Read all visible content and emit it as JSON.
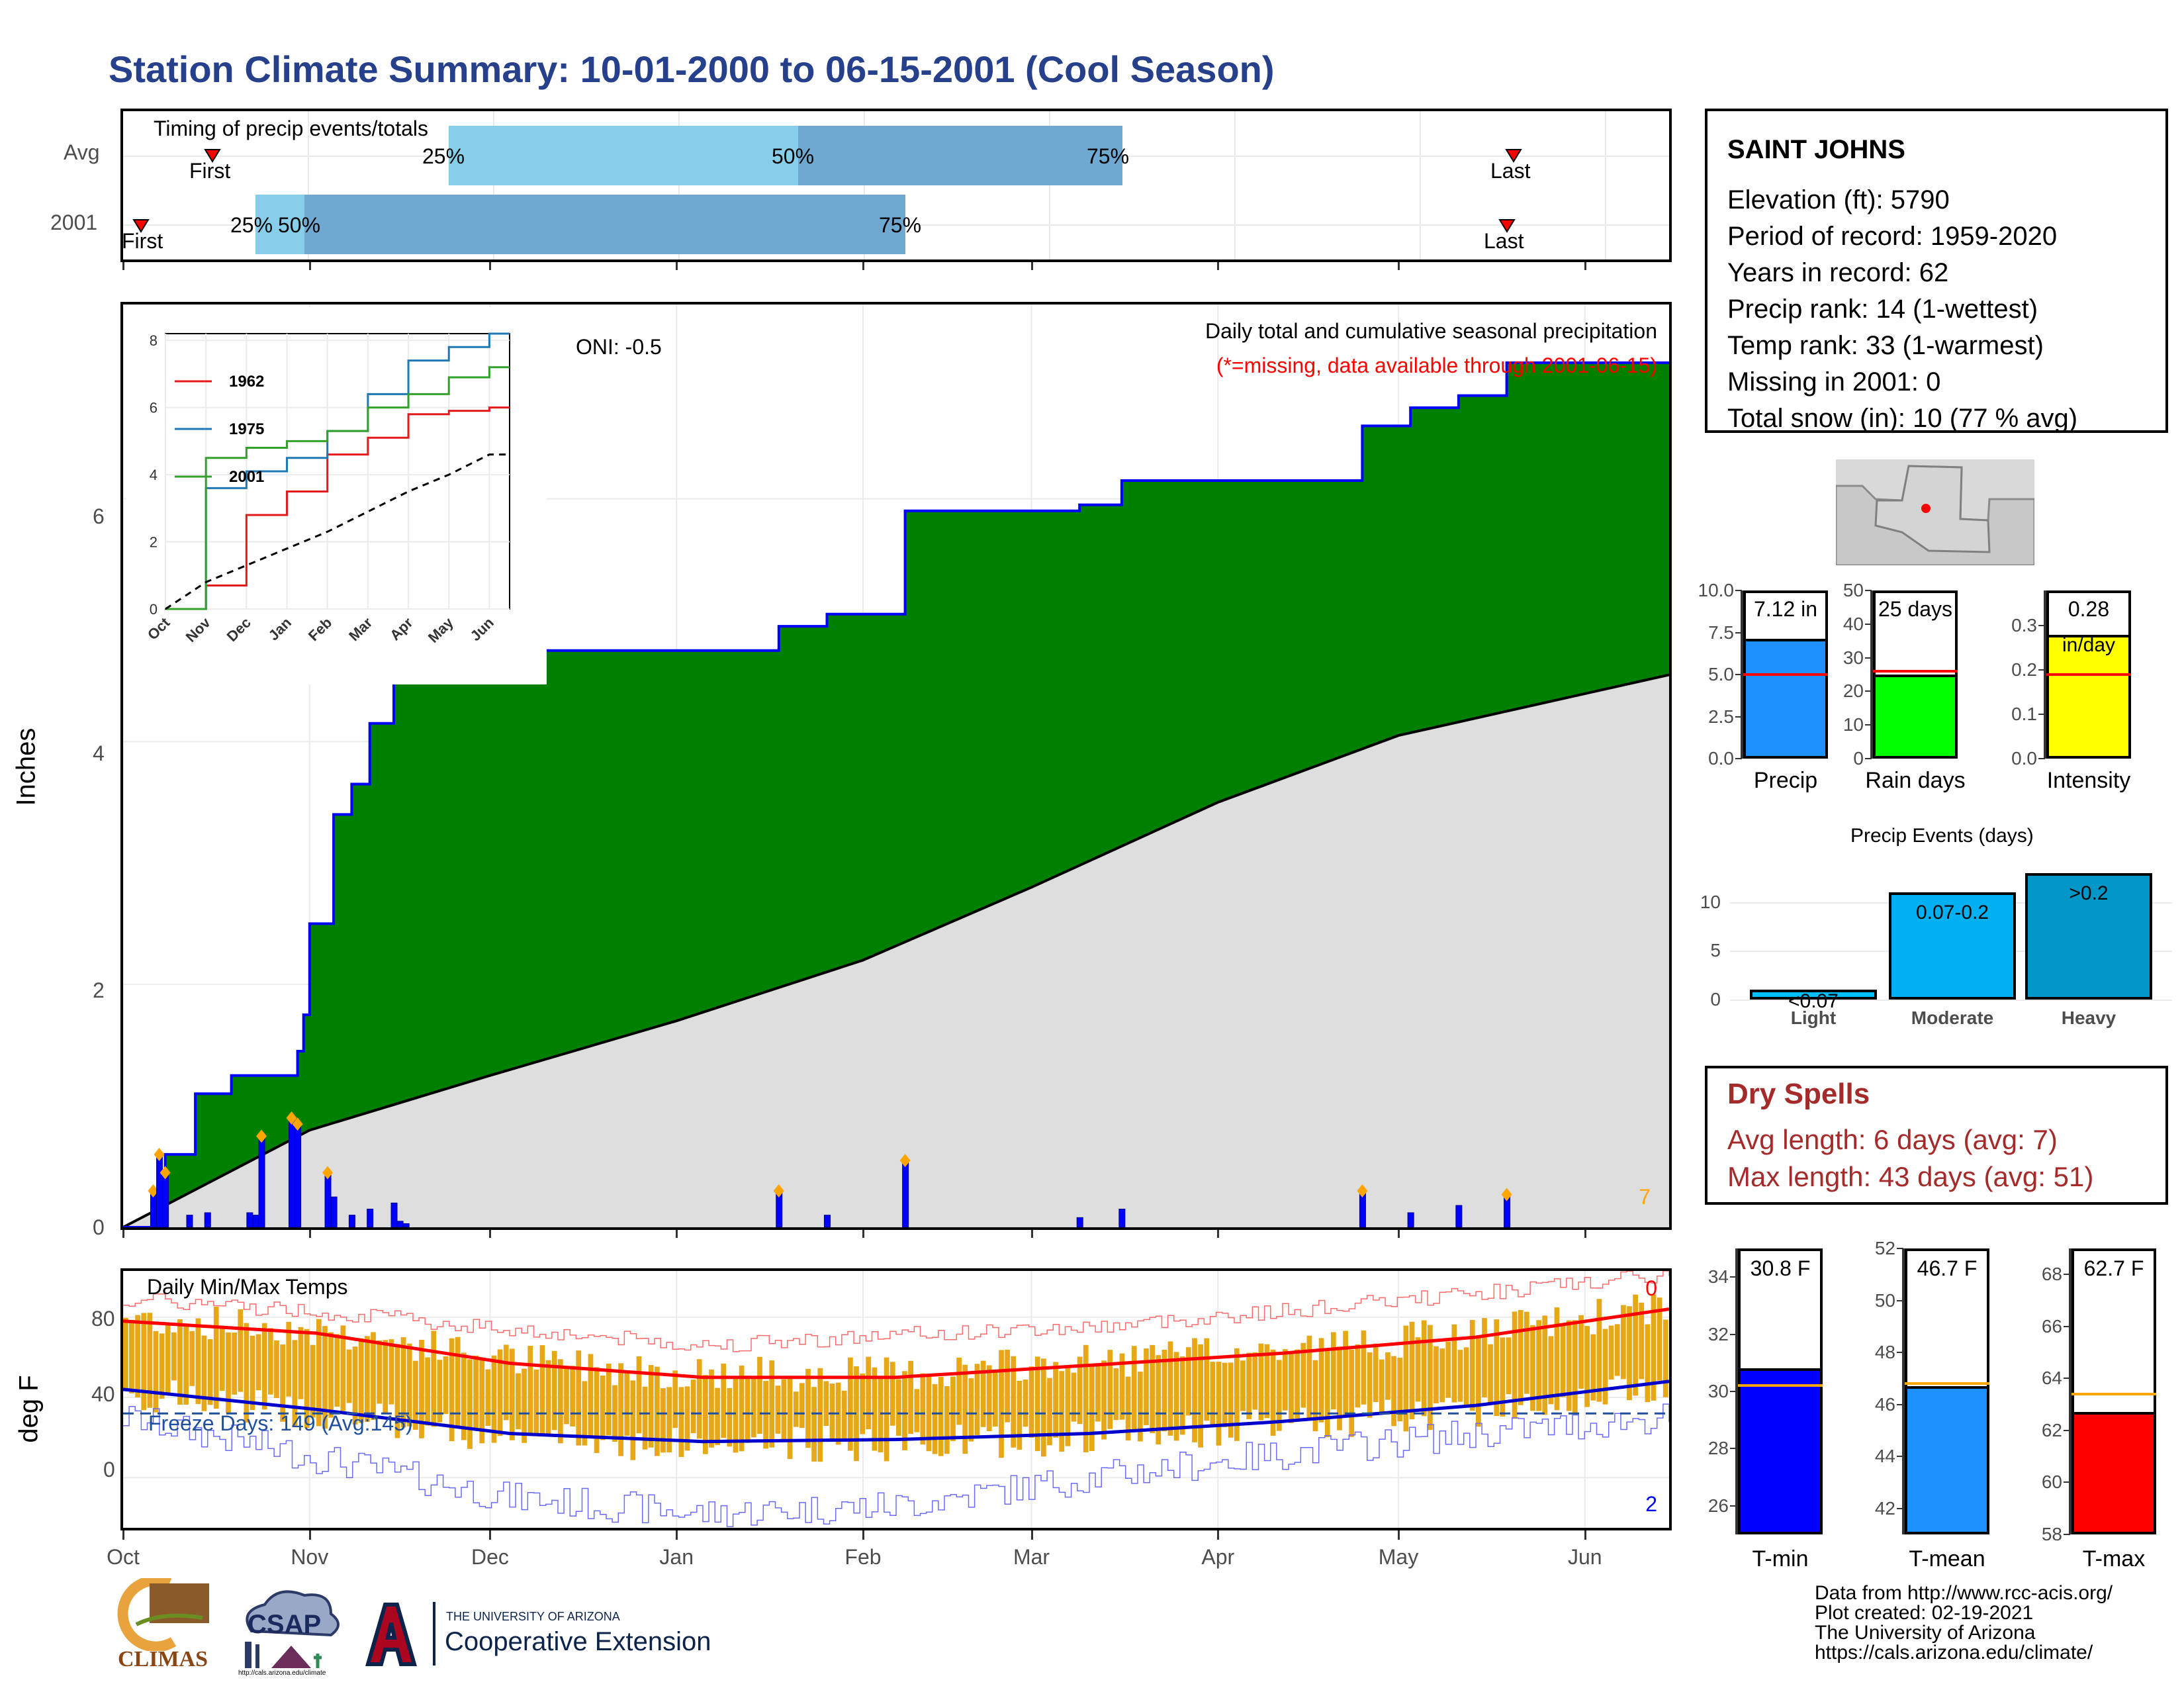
{
  "header": {
    "title": "Station Climate Summary: 10-01-2000 to 06-15-2001 (Cool Season)"
  },
  "timing": {
    "label": "Timing of precip events/totals",
    "rows": [
      "Avg",
      "2001"
    ],
    "first_label": "First",
    "last_label": "Last",
    "p25": "25%",
    "p50": "50%",
    "p75": "75%"
  },
  "main": {
    "ylabel": "Inches",
    "oni": "ONI: -0.5",
    "desc1": "Daily total and cumulative seasonal precipitation",
    "desc2": "(*=missing, data available through 2001-06-15)",
    "count_label": "7",
    "yticks": [
      "0",
      "2",
      "4",
      "6"
    ]
  },
  "inset": {
    "yticks": [
      "0",
      "2",
      "4",
      "6",
      "8"
    ],
    "months": [
      "Oct",
      "Nov",
      "Dec",
      "Jan",
      "Feb",
      "Mar",
      "Apr",
      "May",
      "Jun"
    ],
    "legend": [
      "1962",
      "1975",
      "2001"
    ]
  },
  "temps": {
    "title": "Daily Min/Max Temps",
    "ylabel": "deg F",
    "freeze": "Freeze Days: 149 (Avg:145)",
    "yticks": [
      "0",
      "40",
      "80"
    ],
    "count_high": "0",
    "count_low": "2"
  },
  "months": [
    "Oct",
    "Nov",
    "Dec",
    "Jan",
    "Feb",
    "Mar",
    "Apr",
    "May",
    "Jun"
  ],
  "station": {
    "name": "SAINT JOHNS",
    "elevation": "Elevation (ft): 5790",
    "period": "Period of record: 1959-2020",
    "years": "Years in record: 62",
    "precip_rank": "Precip rank: 14 (1-wettest)",
    "temp_rank": "Temp rank: 33 (1-warmest)",
    "missing": "Missing in 2001: 0",
    "snow": "Total snow (in): 10 (77 % avg)"
  },
  "summary_bars": [
    {
      "name": "Precip",
      "value_label": "7.12 in",
      "value": 7.12,
      "avg": 5.0,
      "ymax": 10,
      "ticks": [
        "0.0",
        "2.5",
        "5.0",
        "7.5",
        "10.0"
      ],
      "color": "#1e90ff"
    },
    {
      "name": "Rain days",
      "value_label": "25 days",
      "value": 25,
      "avg": 26,
      "ymax": 50,
      "ticks": [
        "0",
        "10",
        "20",
        "30",
        "40",
        "50"
      ],
      "color": "#00ff00"
    },
    {
      "name": "Intensity",
      "value_label": "0.28",
      "unit_label": "in/day",
      "value": 0.28,
      "avg": 0.19,
      "ymax": 0.38,
      "ticks": [
        "0.0",
        "0.1",
        "0.2",
        "0.3"
      ],
      "color": "#ffff00"
    }
  ],
  "events": {
    "title": "Precip Events (days)",
    "categories": [
      "Light",
      "Moderate",
      "Heavy"
    ],
    "labels": [
      "<0.07",
      "0.07-0.2",
      ">0.2"
    ],
    "values": [
      1,
      11,
      13
    ],
    "yticks": [
      "0",
      "5",
      "10"
    ]
  },
  "dry_spells": {
    "title": "Dry Spells",
    "avg": "Avg length: 6 days (avg: 7)",
    "max": "Max length: 43 days (avg: 51)"
  },
  "temp_bars": [
    {
      "name": "T-min",
      "value_label": "30.8 F",
      "value": 30.8,
      "avg": 30.2,
      "ymin": 25,
      "ymax": 35,
      "ticks": [
        "26",
        "28",
        "30",
        "32",
        "34"
      ],
      "color": "#0000ff"
    },
    {
      "name": "T-mean",
      "value_label": "46.7 F",
      "value": 46.7,
      "avg": 46.8,
      "ymin": 41,
      "ymax": 52,
      "ticks": [
        "42",
        "44",
        "46",
        "48",
        "50",
        "52"
      ],
      "color": "#1e90ff"
    },
    {
      "name": "T-max",
      "value_label": "62.7 F",
      "value": 62.7,
      "avg": 63.4,
      "ymin": 58,
      "ymax": 69,
      "ticks": [
        "58",
        "60",
        "62",
        "64",
        "66",
        "68"
      ],
      "color": "#ff0000"
    }
  ],
  "footer": {
    "line1": "Data from http://www.rcc-acis.org/",
    "line2": "Plot created: 02-19-2021",
    "line3": "The University of Arizona",
    "line4": "https://cals.arizona.edu/climate/",
    "climas": "CLIMAS",
    "csap": "CSAP",
    "csap_url": "http://cals.arizona.edu/climate",
    "ua_small": "THE UNIVERSITY OF ARIZONA",
    "ua_big": "Cooperative Extension"
  },
  "chart_data": [
    {
      "type": "area",
      "title": "Daily total and cumulative seasonal precipitation",
      "ylabel": "Inches",
      "ylim": [
        0,
        7.6
      ],
      "x_range": [
        "2000-10-01",
        "2001-06-15"
      ],
      "series": [
        {
          "name": "cumulative",
          "x": [
            "2000-10-01",
            "2000-10-06",
            "2000-10-08",
            "2000-10-13",
            "2000-10-19",
            "2000-10-30",
            "2000-10-31",
            "2000-11-01",
            "2000-11-05",
            "2000-11-08",
            "2000-11-11",
            "2000-11-15",
            "2000-11-16",
            "2000-11-17",
            "2000-11-22",
            "2000-11-24",
            "2001-01-18",
            "2001-01-26",
            "2001-02-08",
            "2001-03-09",
            "2001-03-16",
            "2001-04-25",
            "2001-05-03",
            "2001-05-11",
            "2001-05-19",
            "2001-06-15"
          ],
          "values": [
            0.0,
            0.05,
            0.6,
            1.1,
            1.25,
            1.45,
            1.75,
            2.5,
            3.4,
            3.65,
            4.15,
            4.55,
            4.65,
            4.7,
            4.75,
            4.75,
            4.95,
            5.05,
            5.9,
            5.95,
            6.15,
            6.6,
            6.75,
            6.85,
            7.12,
            7.12
          ]
        },
        {
          "name": "average",
          "x": [
            "2000-10-01",
            "2000-11-01",
            "2000-12-01",
            "2001-01-01",
            "2001-02-01",
            "2001-03-01",
            "2001-04-01",
            "2001-05-01",
            "2001-06-15"
          ],
          "values": [
            0.0,
            0.8,
            1.25,
            1.7,
            2.2,
            2.8,
            3.5,
            4.05,
            4.55
          ]
        },
        {
          "name": "daily",
          "x": [
            "2000-10-06",
            "2000-10-07",
            "2000-10-08",
            "2000-10-12",
            "2000-10-15",
            "2000-10-22",
            "2000-10-23",
            "2000-10-24",
            "2000-10-29",
            "2000-10-30",
            "2000-11-04",
            "2000-11-05",
            "2000-11-08",
            "2000-11-11",
            "2000-11-15",
            "2000-11-16",
            "2000-11-17",
            "2001-01-18",
            "2001-01-26",
            "2001-02-08",
            "2001-03-09",
            "2001-03-16",
            "2001-04-25",
            "2001-05-03",
            "2001-05-11",
            "2001-05-19"
          ],
          "values": [
            0.3,
            0.6,
            0.45,
            0.1,
            0.12,
            0.12,
            0.1,
            0.75,
            0.9,
            0.85,
            0.45,
            0.25,
            0.1,
            0.15,
            0.2,
            0.05,
            0.03,
            0.3,
            0.1,
            0.55,
            0.08,
            0.15,
            0.3,
            0.12,
            0.18,
            0.27
          ]
        }
      ]
    },
    {
      "type": "line",
      "title": "",
      "x": [
        "Oct",
        "Nov",
        "Dec",
        "Jan",
        "Feb",
        "Mar",
        "Apr",
        "May",
        "Jun"
      ],
      "ylim": [
        0,
        8.2
      ],
      "series": [
        {
          "name": "1962",
          "values": [
            0.0,
            0.7,
            2.8,
            3.5,
            4.6,
            5.1,
            5.8,
            5.9,
            6.0
          ]
        },
        {
          "name": "1975",
          "values": [
            0.0,
            3.6,
            4.1,
            4.5,
            5.3,
            6.4,
            7.4,
            7.8,
            8.2
          ]
        },
        {
          "name": "2001",
          "values": [
            0.0,
            4.5,
            4.8,
            5.0,
            5.3,
            6.0,
            6.4,
            6.9,
            7.2
          ]
        },
        {
          "name": "average",
          "values": [
            0.0,
            0.8,
            1.3,
            1.8,
            2.3,
            2.9,
            3.5,
            4.0,
            4.6
          ]
        }
      ]
    },
    {
      "type": "bar",
      "title": "Daily Min/Max Temps",
      "ylabel": "deg F",
      "ylim": [
        -25,
        103
      ],
      "x": [
        "Oct",
        "Nov",
        "Dec",
        "Jan",
        "Feb",
        "Mar",
        "Apr",
        "May",
        "Jun"
      ],
      "series": [
        {
          "name": "normal max",
          "values": [
            78,
            72,
            57,
            50,
            50,
            56,
            62,
            70,
            84
          ]
        },
        {
          "name": "normal min",
          "values": [
            44,
            34,
            22,
            18,
            19,
            22,
            28,
            36,
            48
          ]
        },
        {
          "name": "record high",
          "values": [
            89,
            83,
            74,
            66,
            71,
            75,
            83,
            92,
            101
          ]
        },
        {
          "name": "record low",
          "values": [
            30,
            10,
            -10,
            -18,
            -14,
            0,
            12,
            22,
            30
          ]
        }
      ]
    },
    {
      "type": "bar",
      "title": "Precip Events (days)",
      "categories": [
        "Light",
        "Moderate",
        "Heavy"
      ],
      "values": [
        1,
        11,
        13
      ]
    }
  ]
}
